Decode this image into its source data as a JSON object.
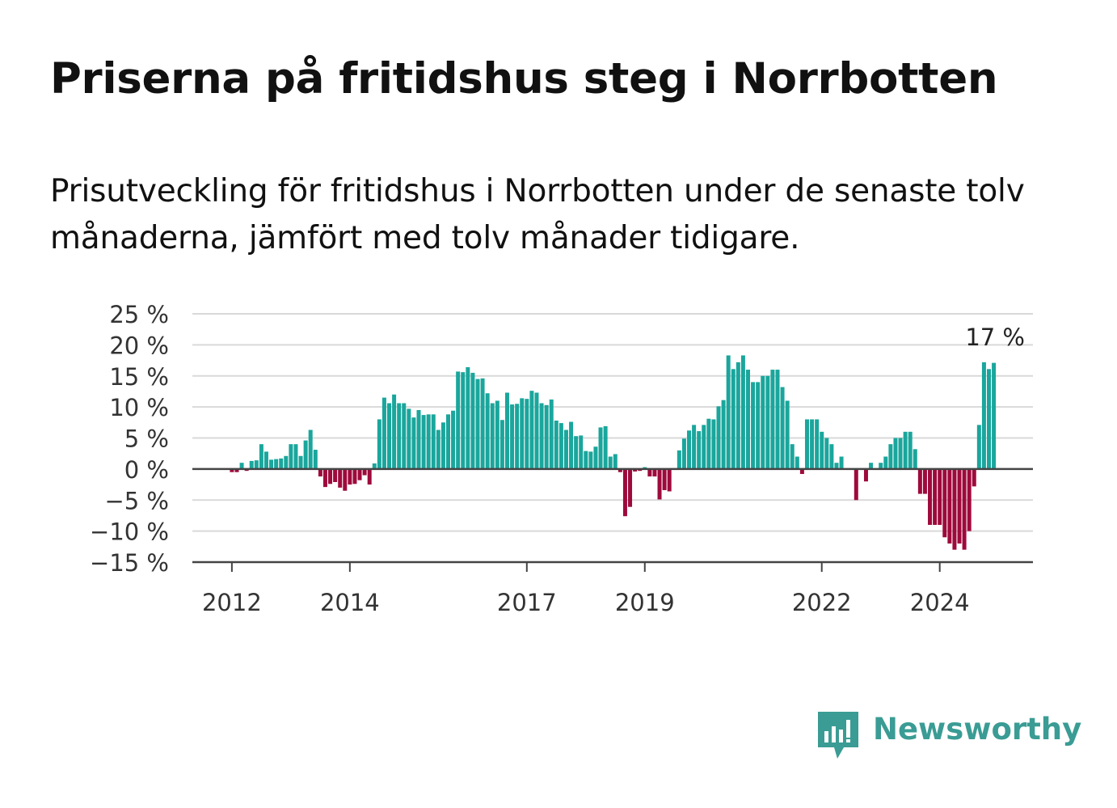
{
  "header": {
    "title": "Priserna på fritidshus steg i Norrbotten",
    "subtitle": "Prisutveckling för fritidshus i Norrbotten under de senaste tolv månaderna, jämfört med tolv månader tidigare."
  },
  "brand": {
    "name": "Newsworthy",
    "icon": "newsworthy-logo-icon",
    "color": "#3a9c94"
  },
  "colors": {
    "positive": "#1aa69c",
    "negative": "#9e0a3c",
    "grid": "#d9d9d9",
    "axis": "#444444"
  },
  "chart_data": {
    "type": "bar",
    "title": "Priserna på fritidshus steg i Norrbotten",
    "xlabel": "",
    "ylabel": "",
    "ylim": [
      -15,
      25
    ],
    "yticks": [
      25,
      20,
      15,
      10,
      5,
      0,
      -5,
      -10,
      -15
    ],
    "ytick_labels": [
      "25 %",
      "20 %",
      "15 %",
      "10 %",
      "5 %",
      "0 %",
      "−5 %",
      "−10 %",
      "−15 %"
    ],
    "xtick_labels": [
      "2012",
      "2014",
      "2017",
      "2019",
      "2022",
      "2024"
    ],
    "xtick_positions": [
      2012,
      2014,
      2017,
      2019,
      2022,
      2024
    ],
    "xlim": [
      2011.33,
      2025.58
    ],
    "grid": true,
    "legend": "none",
    "annotation": {
      "text": "17 %",
      "x": 2024.92,
      "y": 17
    },
    "start": 2012.0,
    "step": 0.0833333,
    "values": [
      -0.5,
      -0.5,
      1,
      -0.3,
      1.3,
      1.4,
      4,
      2.8,
      1.5,
      1.6,
      1.7,
      2.1,
      4,
      4,
      2.1,
      4.6,
      6.3,
      3.1,
      -1.2,
      -2.9,
      -2.4,
      -2.1,
      -3,
      -3.5,
      -2.5,
      -2.4,
      -1.8,
      -1,
      -2.5,
      0.9,
      8,
      11.5,
      10.6,
      12,
      10.6,
      10.6,
      9.7,
      8.3,
      9.5,
      8.7,
      8.8,
      8.8,
      6.3,
      7.5,
      8.8,
      9.4,
      15.7,
      15.6,
      16.4,
      15.5,
      14.5,
      14.6,
      12.2,
      10.6,
      11,
      7.9,
      12.3,
      10.4,
      10.5,
      11.4,
      11.3,
      12.6,
      12.3,
      10.6,
      10.3,
      11.2,
      7.8,
      7.4,
      6.3,
      7.6,
      5.3,
      5.4,
      2.9,
      2.8,
      3.6,
      6.7,
      6.9,
      2,
      2.4,
      -0.5,
      -7.6,
      -6.1,
      -0.4,
      -0.3,
      0.3,
      -1.2,
      -1.2,
      -4.9,
      -3.4,
      -3.6,
      0,
      3,
      4.9,
      6.2,
      7.1,
      6.1,
      7.1,
      8.1,
      8,
      10.1,
      11.1,
      18.3,
      16.1,
      17.2,
      18.3,
      16,
      14,
      14,
      15,
      15,
      16,
      16,
      13.2,
      11,
      4,
      2,
      -0.8,
      8,
      8,
      8,
      6,
      5,
      4,
      1,
      2,
      0,
      0,
      -5,
      0,
      -2,
      1,
      0,
      1,
      2,
      4,
      5,
      5,
      6,
      6,
      3.2,
      -4,
      -4,
      -9,
      -9,
      -9,
      -11,
      -12,
      -13,
      -12,
      -13,
      -10,
      -2.8,
      7.1,
      17.2,
      16.1,
      17.1
    ]
  }
}
